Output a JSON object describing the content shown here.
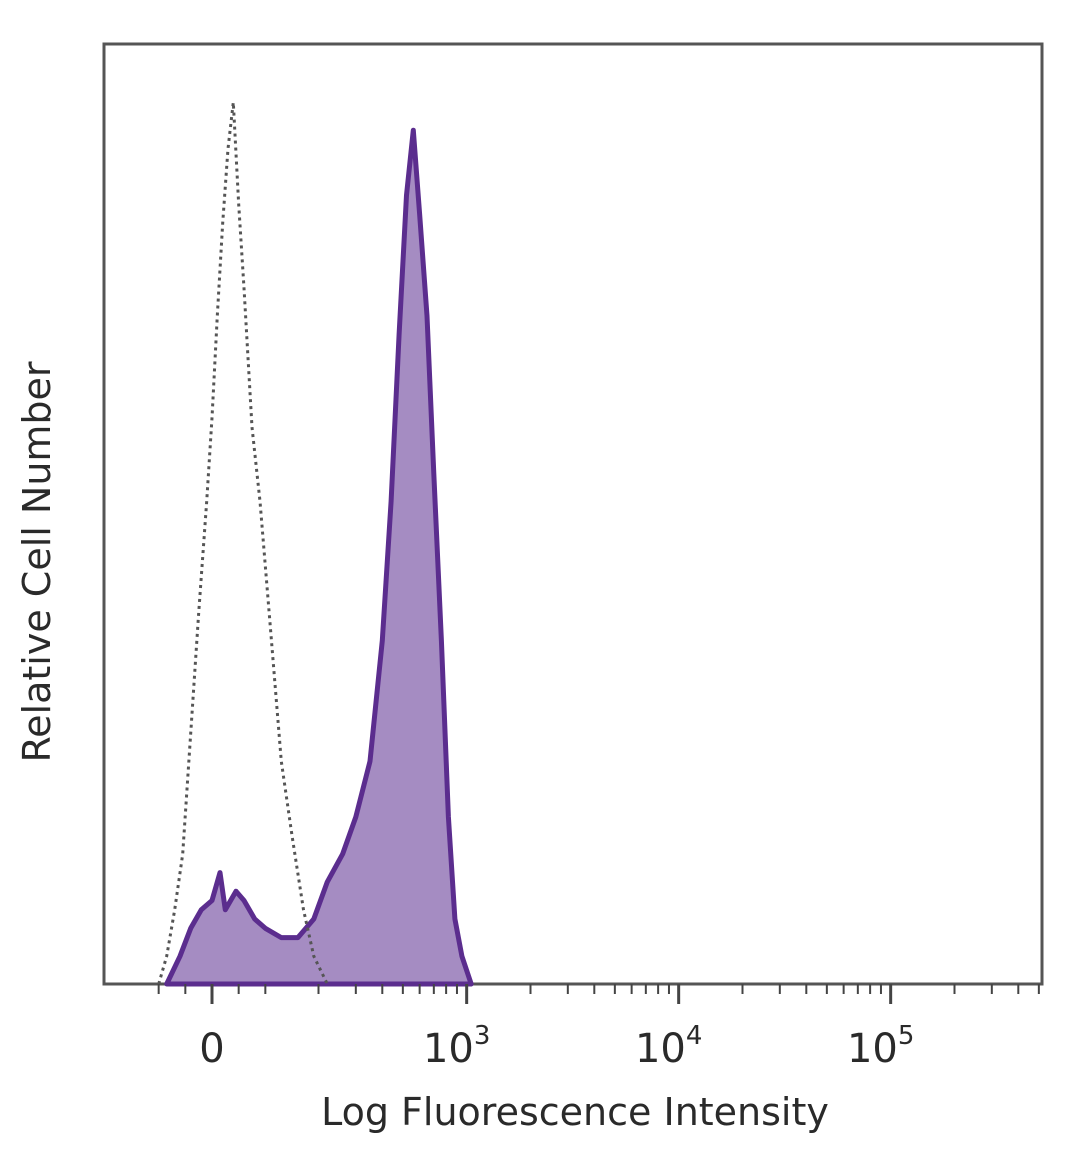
{
  "chart_data": {
    "type": "area",
    "xlabel": "Log Fluorescence Intensity",
    "ylabel": "Relative Cell Number",
    "x_scale": "biexponential",
    "xlim": [
      -150,
      200000
    ],
    "ylim": [
      0,
      100
    ],
    "grid": false,
    "legend": "none",
    "x_ticks": [
      {
        "value": 0,
        "base": "0",
        "exp": ""
      },
      {
        "value": 1000,
        "base": "10",
        "exp": "3"
      },
      {
        "value": 10000,
        "base": "10",
        "exp": "4"
      },
      {
        "value": 100000,
        "base": "10",
        "exp": "5"
      }
    ],
    "series": [
      {
        "style": "dotted-outline",
        "color": "#555555",
        "points": [
          [
            -100,
            0
          ],
          [
            -85,
            3
          ],
          [
            -70,
            8
          ],
          [
            -55,
            14
          ],
          [
            -40,
            27
          ],
          [
            -25,
            40
          ],
          [
            -10,
            52
          ],
          [
            0,
            61
          ],
          [
            10,
            72
          ],
          [
            20,
            82
          ],
          [
            30,
            90
          ],
          [
            40,
            95
          ],
          [
            50,
            84
          ],
          [
            60,
            75
          ],
          [
            75,
            60
          ],
          [
            90,
            52
          ],
          [
            110,
            38
          ],
          [
            130,
            24
          ],
          [
            150,
            16
          ],
          [
            170,
            8
          ],
          [
            190,
            3
          ],
          [
            220,
            0
          ]
        ]
      },
      {
        "style": "filled",
        "color": "#5b2d8e",
        "fill": "#a58cc2",
        "points": [
          [
            -85,
            0
          ],
          [
            -60,
            3
          ],
          [
            -40,
            6
          ],
          [
            -20,
            8
          ],
          [
            0,
            9
          ],
          [
            15,
            12
          ],
          [
            25,
            8
          ],
          [
            45,
            10
          ],
          [
            60,
            9
          ],
          [
            80,
            7
          ],
          [
            100,
            6
          ],
          [
            130,
            5
          ],
          [
            160,
            5
          ],
          [
            190,
            7
          ],
          [
            220,
            11
          ],
          [
            260,
            14
          ],
          [
            300,
            18
          ],
          [
            350,
            24
          ],
          [
            400,
            37
          ],
          [
            440,
            52
          ],
          [
            480,
            70
          ],
          [
            520,
            85
          ],
          [
            560,
            92
          ],
          [
            600,
            83
          ],
          [
            650,
            72
          ],
          [
            700,
            55
          ],
          [
            760,
            37
          ],
          [
            820,
            18
          ],
          [
            880,
            7
          ],
          [
            950,
            3
          ],
          [
            1050,
            0
          ]
        ]
      }
    ]
  }
}
